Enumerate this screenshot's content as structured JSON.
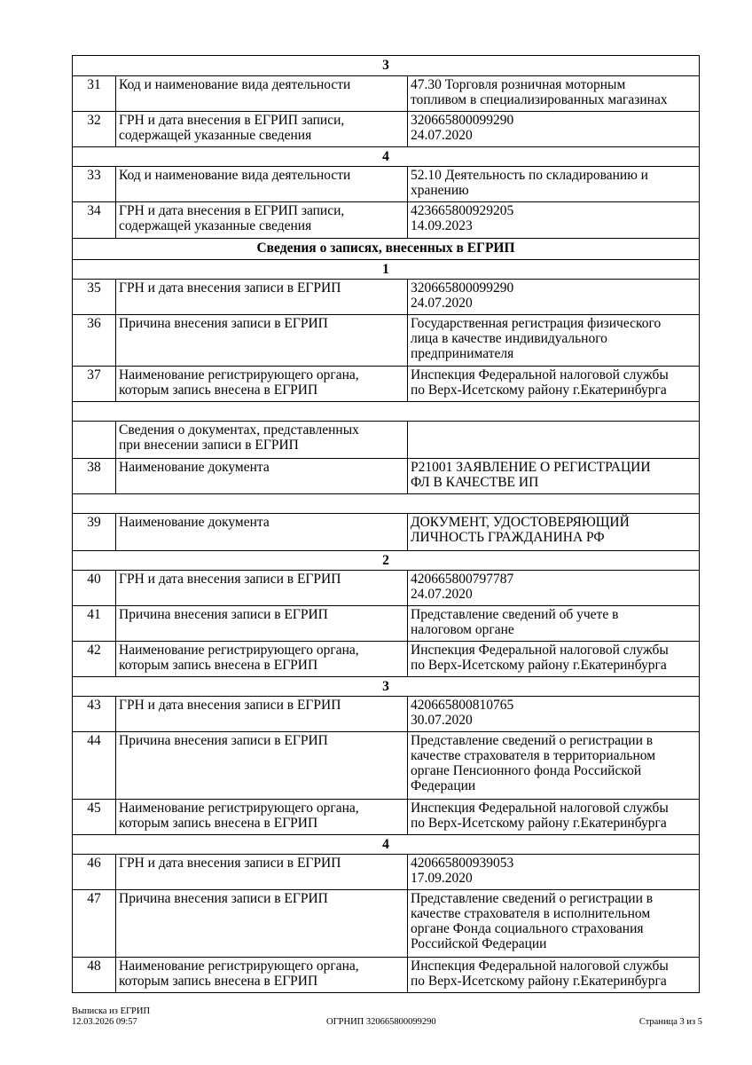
{
  "rows": [
    {
      "type": "section",
      "text": "3",
      "h": 23
    },
    {
      "type": "row",
      "num": "31",
      "label": "Код и наименование вида деятельности",
      "value": "47.30 Торговля розничная моторным\nтопливом в специализированных магазинах",
      "h": 40
    },
    {
      "type": "row",
      "num": "32",
      "label": "ГРН и дата внесения в ЕГРИП записи,\nсодержащей указанные сведения",
      "value": "320665800099290\n24.07.2020",
      "h": 40
    },
    {
      "type": "section",
      "text": "4",
      "h": 22
    },
    {
      "type": "row",
      "num": "33",
      "label": "Код и наименование вида деятельности",
      "value": "52.10 Деятельность по складированию и\nхранению",
      "h": 40
    },
    {
      "type": "row",
      "num": "34",
      "label": "ГРН и дата внесения в ЕГРИП записи,\nсодержащей указанные сведения",
      "value": "423665800929205\n14.09.2023",
      "h": 41
    },
    {
      "type": "section",
      "text": "Сведения о записях, внесенных в ЕГРИП",
      "h": 24
    },
    {
      "type": "section",
      "text": "1",
      "h": 22
    },
    {
      "type": "row",
      "num": "35",
      "label": "ГРН и дата внесения записи в ЕГРИП",
      "value": "320665800099290\n24.07.2020",
      "h": 40
    },
    {
      "type": "row",
      "num": "36",
      "label": "Причина внесения записи в ЕГРИП",
      "value": "Государственная регистрация физического\nлица в качестве индивидуального\nпредпринимателя",
      "h": 58
    },
    {
      "type": "row",
      "num": "37",
      "label": "Наименование регистрирующего органа,\nкоторым запись внесена в ЕГРИП",
      "value": "Инспекция Федеральной налоговой службы\nпо Верх-Исетскому району г.Екатеринбурга",
      "h": 40
    },
    {
      "type": "empty",
      "h": 22
    },
    {
      "type": "row",
      "num": "",
      "label": "Сведения о документах, представленных\nпри внесении записи в ЕГРИП",
      "value": "",
      "h": 42
    },
    {
      "type": "row",
      "num": "38",
      "label": "Наименование документа",
      "value": "Р21001 ЗАЯВЛЕНИЕ О РЕГИСТРАЦИИ\nФЛ В КАЧЕСТВЕ ИП",
      "h": 40
    },
    {
      "type": "empty",
      "h": 22
    },
    {
      "type": "row",
      "num": "39",
      "label": "Наименование документа",
      "value": "ДОКУМЕНТ, УДОСТОВЕРЯЮЩИЙ\nЛИЧНОСТЬ ГРАЖДАНИНА РФ",
      "h": 42
    },
    {
      "type": "section",
      "text": "2",
      "h": 22
    },
    {
      "type": "row",
      "num": "40",
      "label": "ГРН и дата внесения записи в ЕГРИП",
      "value": "420665800797787\n24.07.2020",
      "h": 40
    },
    {
      "type": "row",
      "num": "41",
      "label": "Причина внесения записи в ЕГРИП",
      "value": "Представление сведений об учете в\nналоговом органе",
      "h": 40
    },
    {
      "type": "row",
      "num": "42",
      "label": "Наименование регистрирующего органа,\nкоторым запись внесена в ЕГРИП",
      "value": "Инспекция Федеральной налоговой службы\nпо Верх-Исетскому району г.Екатеринбурга",
      "h": 40
    },
    {
      "type": "section",
      "text": "3",
      "h": 22
    },
    {
      "type": "row",
      "num": "43",
      "label": "ГРН и дата внесения записи в ЕГРИП",
      "value": "420665800810765\n30.07.2020",
      "h": 40
    },
    {
      "type": "row",
      "num": "44",
      "label": "Причина внесения записи в ЕГРИП",
      "value": "Представление сведений о регистрации в\nкачестве страхователя в территориальном\nоргане Пенсионного фонда Российской\nФедерации",
      "h": 76
    },
    {
      "type": "row",
      "num": "45",
      "label": "Наименование регистрирующего органа,\nкоторым запись внесена в ЕГРИП",
      "value": "Инспекция Федеральной налоговой службы\nпо Верх-Исетскому району г.Екатеринбурга",
      "h": 40
    },
    {
      "type": "section",
      "text": "4",
      "h": 22
    },
    {
      "type": "row",
      "num": "46",
      "label": "ГРН и дата внесения записи в ЕГРИП",
      "value": "420665800939053\n17.09.2020",
      "h": 40
    },
    {
      "type": "row",
      "num": "47",
      "label": "Причина внесения записи в ЕГРИП",
      "value": "Представление сведений о регистрации в\nкачестве страхователя в исполнительном\nорганe Фонда социального страхования\nРоссийской Федерации",
      "h": 76
    },
    {
      "type": "row",
      "num": "48",
      "label": "Наименование регистрирующего органа,\nкоторым запись внесена в ЕГРИП",
      "value": "Инспекция Федеральной налоговой службы\nпо Верх-Исетскому району г.Екатеринбурга",
      "h": 40
    }
  ],
  "footer": {
    "doc_title": "Выписка из ЕГРИП",
    "datetime": "12.03.2026 09:57",
    "ogrnip": "ОГРНИП 320665800099290",
    "page": "Страница 3 из 5"
  }
}
